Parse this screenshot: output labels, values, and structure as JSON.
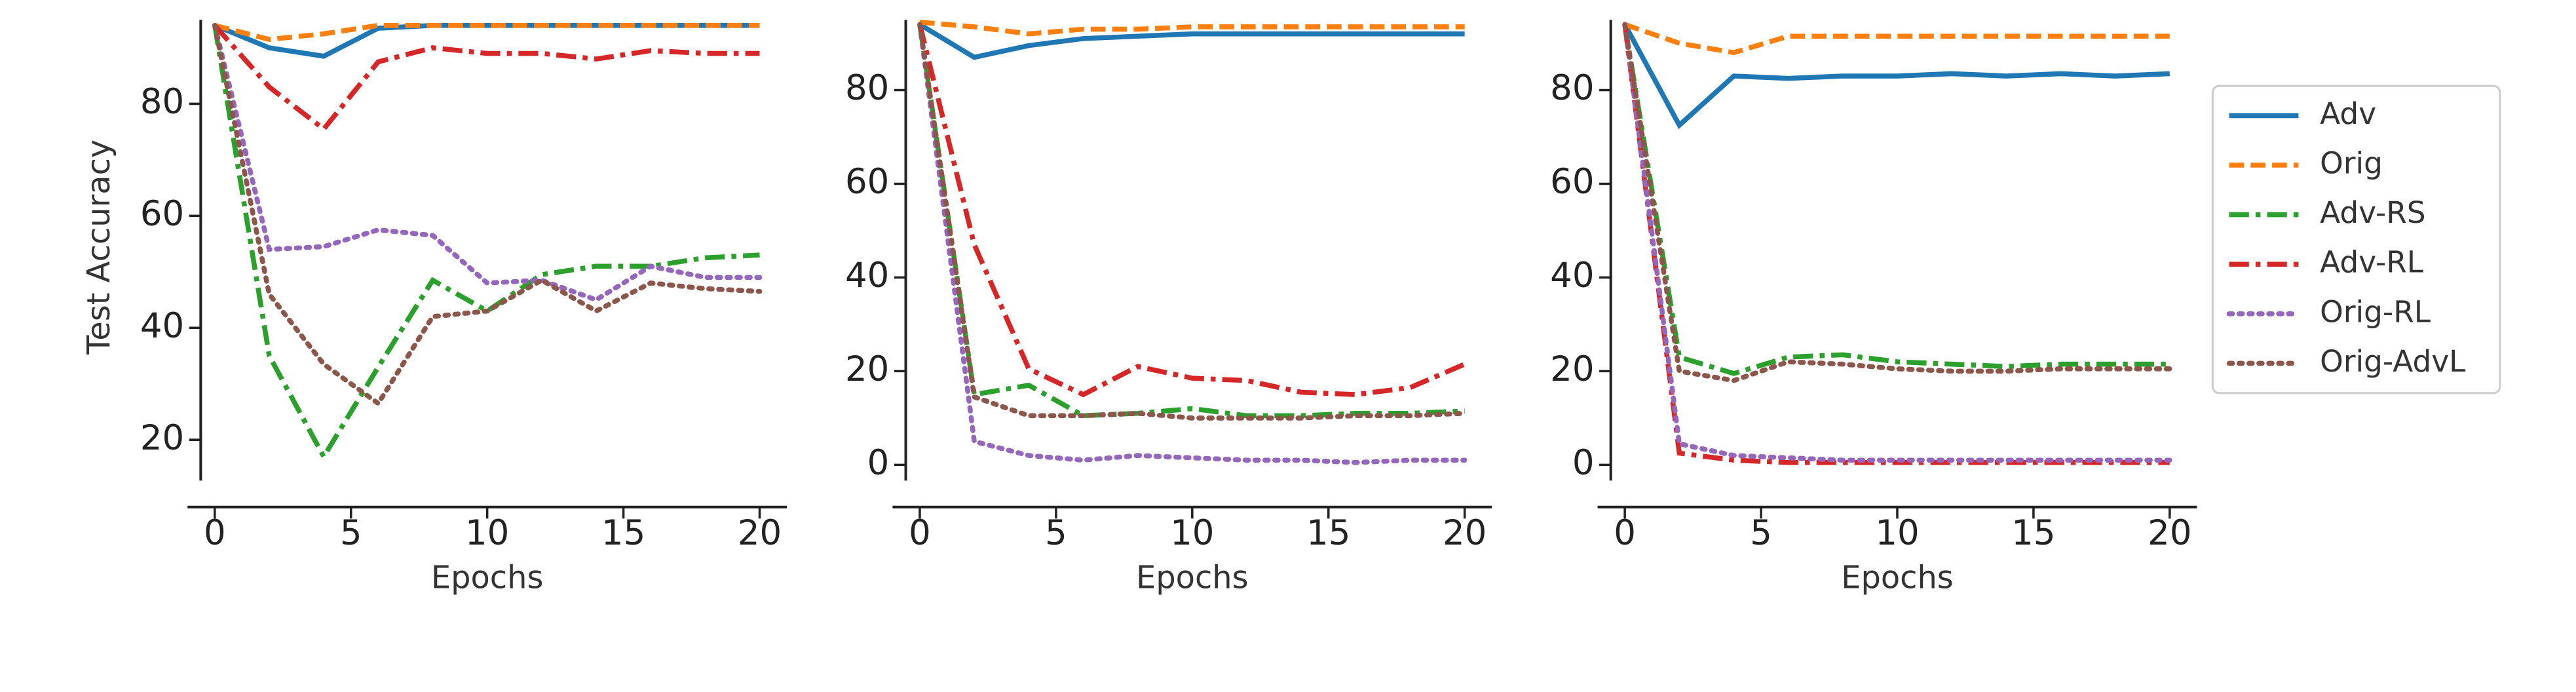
{
  "chart_data": [
    {
      "type": "line",
      "ylabel": "Test Accuracy",
      "xlabel": "Epochs",
      "x": [
        0,
        2,
        4,
        6,
        8,
        10,
        12,
        14,
        16,
        18,
        20
      ],
      "xlim": [
        -1,
        21
      ],
      "xticks": [
        0,
        5,
        10,
        15,
        20
      ],
      "ylim": [
        8,
        95
      ],
      "yticks": [
        20,
        40,
        60,
        80
      ],
      "series": [
        {
          "name": "Adv",
          "color": "#1f77b4",
          "linestyle": "solid",
          "values": [
            94,
            90,
            88.5,
            93.5,
            94,
            94,
            94,
            94,
            94,
            94,
            94
          ]
        },
        {
          "name": "Orig",
          "color": "#ff7f0e",
          "linestyle": "dashed",
          "values": [
            94,
            91.5,
            92.5,
            94,
            94,
            94,
            94,
            94,
            94,
            94,
            94
          ]
        },
        {
          "name": "Adv-RS",
          "color": "#2ca02c",
          "linestyle": "dashdot",
          "values": [
            94,
            35,
            17,
            33,
            48.5,
            43,
            49.5,
            51,
            51,
            52.5,
            53
          ]
        },
        {
          "name": "Adv-RL",
          "color": "#d62728",
          "linestyle": "dashdot",
          "values": [
            94,
            83,
            75.5,
            87.5,
            90,
            89,
            89,
            88,
            89.5,
            89,
            89
          ]
        },
        {
          "name": "Orig-RL",
          "color": "#9467bd",
          "linestyle": "dotted",
          "values": [
            94,
            54,
            54.5,
            57.5,
            56.5,
            48,
            48.5,
            45,
            51,
            49,
            49
          ]
        },
        {
          "name": "Orig-AdvL",
          "color": "#8c564b",
          "linestyle": "dotted",
          "values": [
            94,
            46,
            33.5,
            26.5,
            42,
            43,
            48.5,
            43,
            48,
            47,
            46.5
          ]
        }
      ]
    },
    {
      "type": "line",
      "xlabel": "Epochs",
      "x": [
        0,
        2,
        4,
        6,
        8,
        10,
        12,
        14,
        16,
        18,
        20
      ],
      "xlim": [
        -1,
        21
      ],
      "xticks": [
        0,
        5,
        10,
        15,
        20
      ],
      "ylim": [
        -9,
        95
      ],
      "yticks": [
        0,
        20,
        40,
        60,
        80
      ],
      "series": [
        {
          "name": "Adv",
          "color": "#1f77b4",
          "linestyle": "solid",
          "values": [
            94,
            87,
            89.5,
            91,
            91.5,
            92,
            92,
            92,
            92,
            92,
            92
          ]
        },
        {
          "name": "Orig",
          "color": "#ff7f0e",
          "linestyle": "dashed",
          "values": [
            94.5,
            93.5,
            92,
            93,
            93,
            93.5,
            93.5,
            93.5,
            93.5,
            93.5,
            93.5
          ]
        },
        {
          "name": "Adv-RS",
          "color": "#2ca02c",
          "linestyle": "dashdot",
          "values": [
            94,
            15,
            17,
            10.5,
            11,
            12,
            10.5,
            10.5,
            11,
            11,
            11.5
          ]
        },
        {
          "name": "Adv-RL",
          "color": "#d62728",
          "linestyle": "dashdot",
          "values": [
            94,
            47,
            20.5,
            15,
            21,
            18.5,
            18,
            15.5,
            15,
            16.5,
            21.5
          ]
        },
        {
          "name": "Orig-RL",
          "color": "#9467bd",
          "linestyle": "dotted",
          "values": [
            94,
            5,
            2,
            1,
            2,
            1.5,
            1,
            1,
            0.5,
            1,
            1
          ]
        },
        {
          "name": "Orig-AdvL",
          "color": "#8c564b",
          "linestyle": "dotted",
          "values": [
            94,
            14.5,
            10.5,
            10.5,
            11,
            10,
            10,
            10,
            10.5,
            10.5,
            11
          ]
        }
      ]
    },
    {
      "type": "line",
      "xlabel": "Epochs",
      "legend": "outside right",
      "x": [
        0,
        2,
        4,
        6,
        8,
        10,
        12,
        14,
        16,
        18,
        20
      ],
      "xlim": [
        -1,
        21
      ],
      "xticks": [
        0,
        5,
        10,
        15,
        20
      ],
      "ylim": [
        -9,
        95
      ],
      "yticks": [
        0,
        20,
        40,
        60,
        80
      ],
      "series": [
        {
          "name": "Adv",
          "color": "#1f77b4",
          "linestyle": "solid",
          "values": [
            94,
            72.5,
            83,
            82.5,
            83,
            83,
            83.5,
            83,
            83.5,
            83,
            83.5
          ]
        },
        {
          "name": "Orig",
          "color": "#ff7f0e",
          "linestyle": "dashed",
          "values": [
            94,
            90,
            88,
            91.5,
            91.5,
            91.5,
            91.5,
            91.5,
            91.5,
            91.5,
            91.5
          ]
        },
        {
          "name": "Adv-RS",
          "color": "#2ca02c",
          "linestyle": "dashdot",
          "values": [
            94,
            23,
            19.5,
            23,
            23.5,
            22,
            21.5,
            21,
            21.5,
            21.5,
            21.5
          ]
        },
        {
          "name": "Adv-RL",
          "color": "#d62728",
          "linestyle": "dashdot",
          "values": [
            94,
            2.5,
            1,
            0.5,
            0.5,
            0.5,
            0.5,
            0.5,
            0.5,
            0.5,
            0.5
          ]
        },
        {
          "name": "Orig-RL",
          "color": "#9467bd",
          "linestyle": "dotted",
          "values": [
            94,
            4.5,
            2,
            1.5,
            1,
            1,
            1,
            1,
            1,
            1,
            1
          ]
        },
        {
          "name": "Orig-AdvL",
          "color": "#8c564b",
          "linestyle": "dotted",
          "values": [
            94,
            20,
            18,
            22,
            21.5,
            20.5,
            20,
            20,
            20.5,
            20.5,
            20.5
          ]
        }
      ]
    }
  ]
}
